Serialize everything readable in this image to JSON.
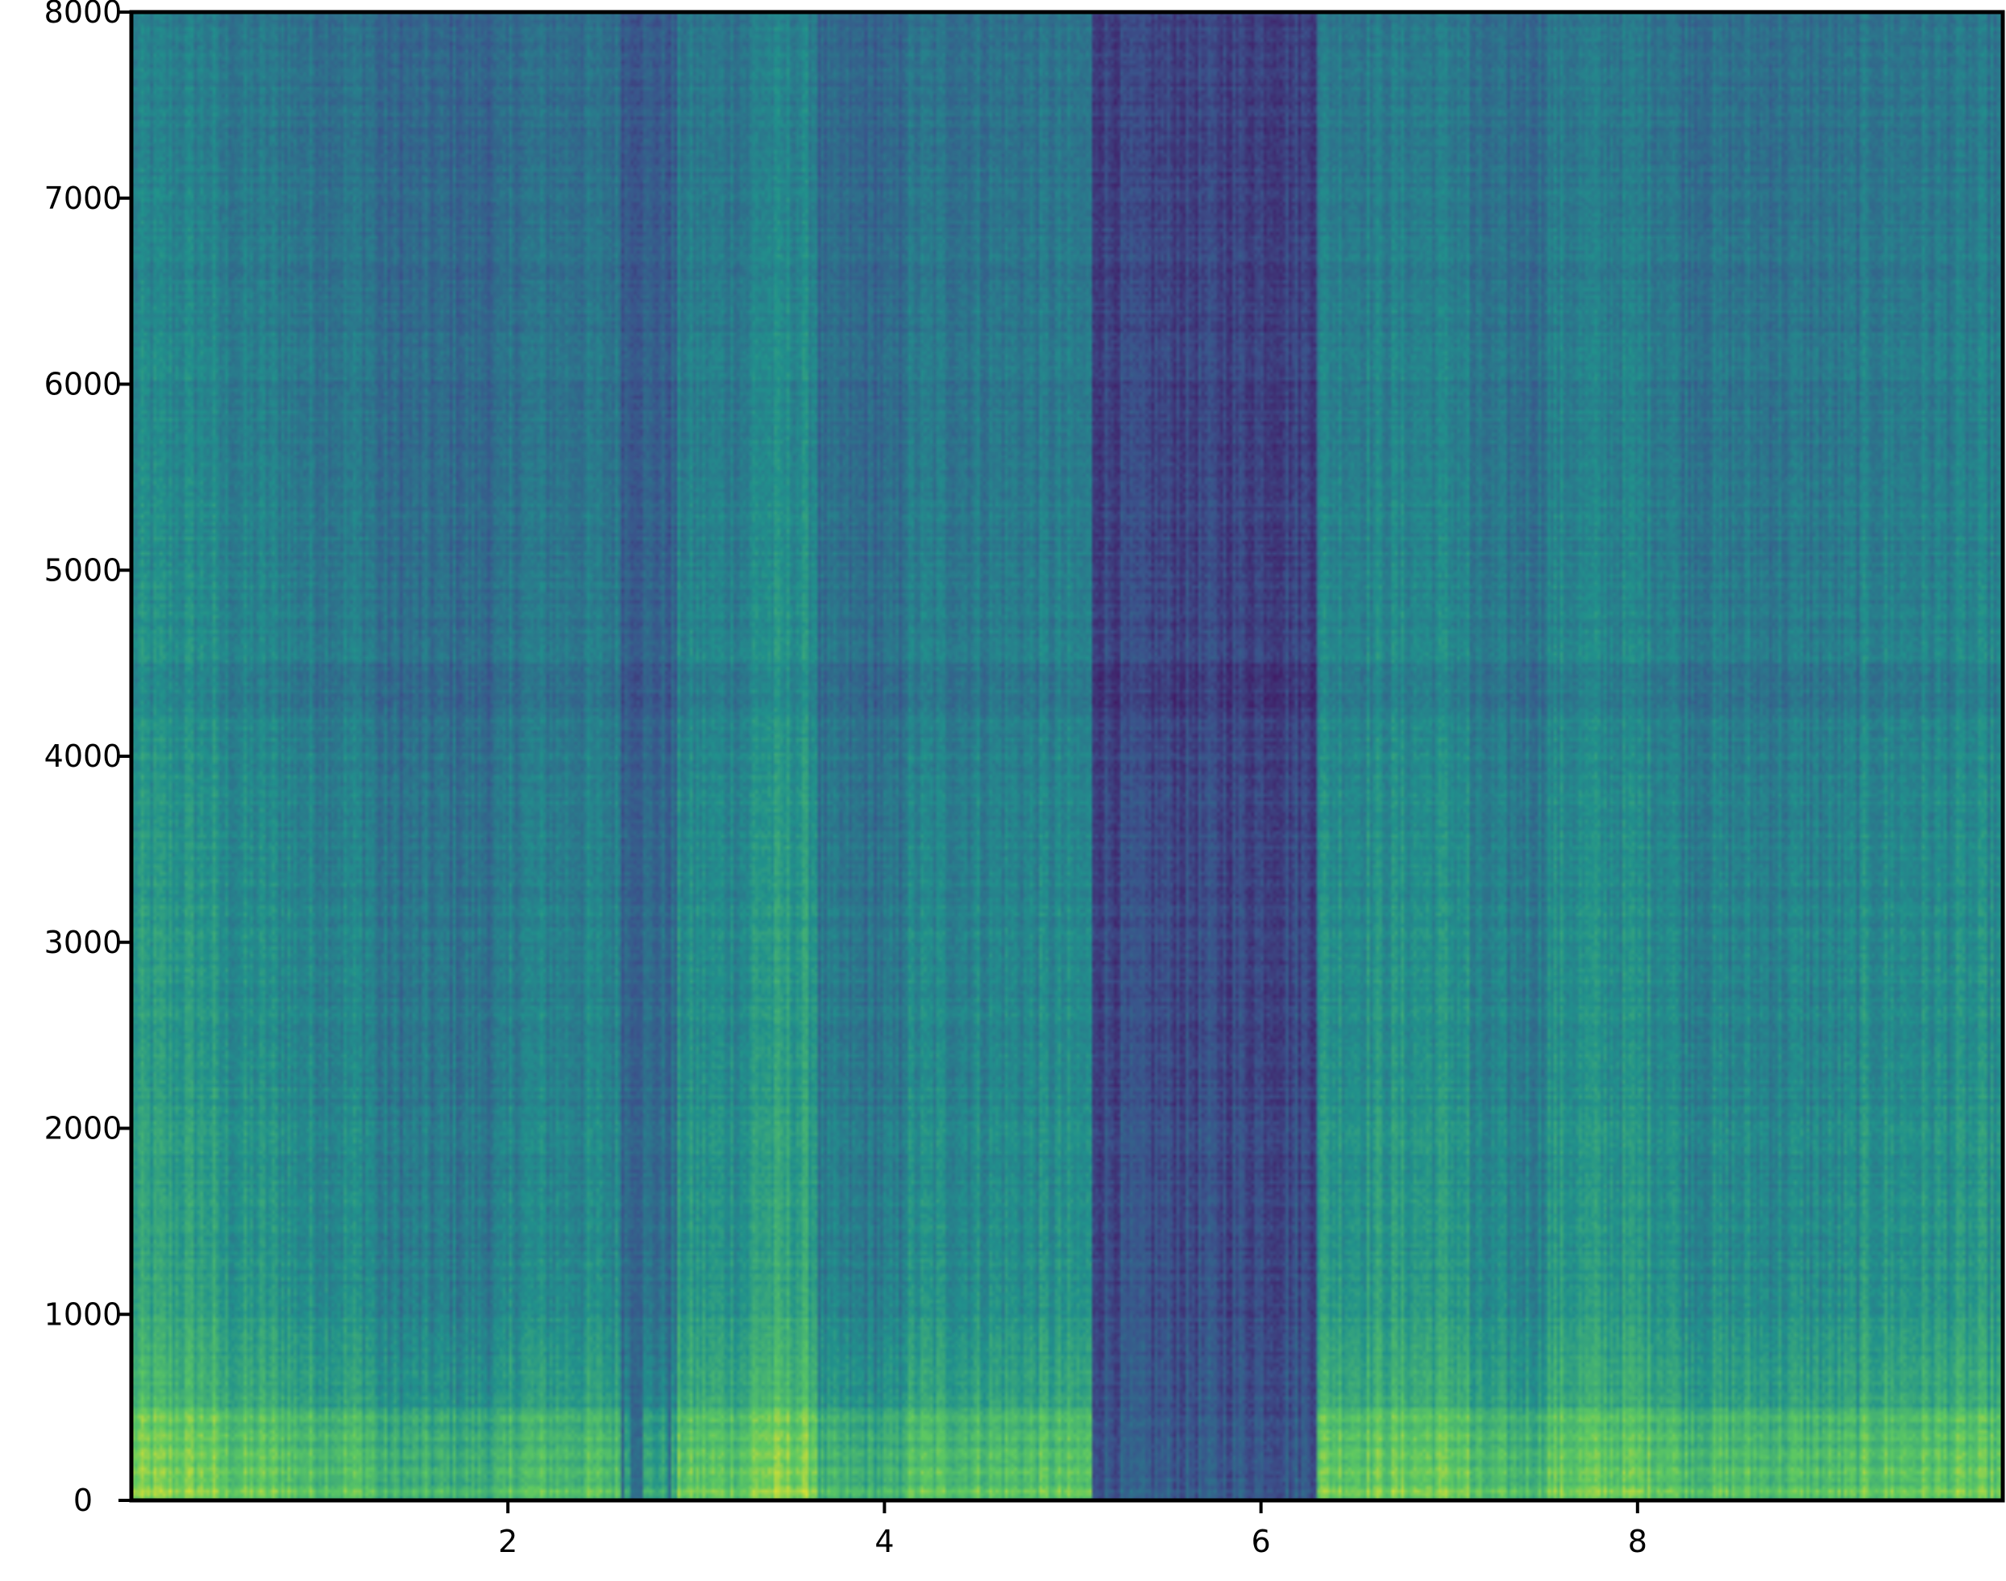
{
  "chart_data": {
    "type": "heatmap",
    "title": "",
    "xlabel": "",
    "ylabel": "",
    "xlim": [
      0,
      9.94
    ],
    "ylim": [
      0,
      8000
    ],
    "x_ticks": [
      2,
      4,
      6,
      8
    ],
    "x_tick_labels": [
      "2",
      "4",
      "6",
      "8"
    ],
    "y_ticks": [
      0,
      1000,
      2000,
      3000,
      4000,
      5000,
      6000,
      7000,
      8000
    ],
    "y_tick_labels": [
      "0",
      "1000",
      "2000",
      "3000",
      "4000",
      "5000",
      "6000",
      "7000",
      "8000"
    ],
    "grid": false,
    "legend": "none",
    "colormap": "viridis",
    "colormap_stops": [
      "#440154",
      "#3b528b",
      "#21918c",
      "#5ec962",
      "#fde725"
    ],
    "segments": [
      {
        "start": 0.0,
        "end": 0.45,
        "level": 0.7
      },
      {
        "start": 0.45,
        "end": 0.85,
        "level": 0.62
      },
      {
        "start": 0.85,
        "end": 1.3,
        "level": 0.58
      },
      {
        "start": 1.3,
        "end": 2.0,
        "level": 0.46
      },
      {
        "start": 2.0,
        "end": 2.6,
        "level": 0.55
      },
      {
        "start": 2.6,
        "end": 2.9,
        "level": 0.38
      },
      {
        "start": 2.9,
        "end": 3.3,
        "level": 0.62
      },
      {
        "start": 3.3,
        "end": 3.65,
        "level": 0.72
      },
      {
        "start": 3.65,
        "end": 4.1,
        "level": 0.45
      },
      {
        "start": 4.1,
        "end": 5.1,
        "level": 0.58
      },
      {
        "start": 5.1,
        "end": 6.3,
        "level": 0.18
      },
      {
        "start": 6.3,
        "end": 7.1,
        "level": 0.66
      },
      {
        "start": 7.1,
        "end": 7.5,
        "level": 0.52
      },
      {
        "start": 7.5,
        "end": 8.2,
        "level": 0.64
      },
      {
        "start": 8.2,
        "end": 9.2,
        "level": 0.56
      },
      {
        "start": 9.2,
        "end": 9.94,
        "level": 0.62
      }
    ]
  }
}
